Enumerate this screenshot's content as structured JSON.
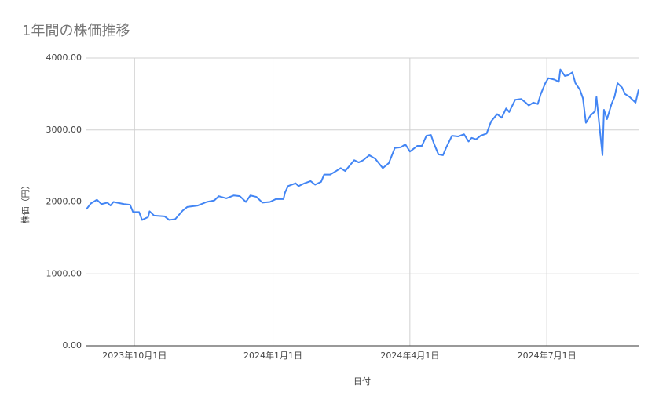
{
  "chart_data": {
    "type": "line",
    "title": "1年間の株価推移",
    "x_label": "日付",
    "y_label": "株価（円）",
    "x": [
      "2023-08-30",
      "2023-09-02",
      "2023-09-06",
      "2023-09-09",
      "2023-09-13",
      "2023-09-15",
      "2023-09-17",
      "2023-09-24",
      "2023-09-28",
      "2023-09-30",
      "2023-10-04",
      "2023-10-06",
      "2023-10-10",
      "2023-10-11",
      "2023-10-14",
      "2023-10-21",
      "2023-10-24",
      "2023-10-28",
      "2023-11-02",
      "2023-11-05",
      "2023-11-12",
      "2023-11-18",
      "2023-11-23",
      "2023-11-26",
      "2023-12-01",
      "2023-12-06",
      "2023-12-10",
      "2023-12-14",
      "2023-12-17",
      "2023-12-21",
      "2023-12-25",
      "2023-12-30",
      "2024-01-03",
      "2024-01-08",
      "2024-01-09",
      "2024-01-11",
      "2024-01-16",
      "2024-01-18",
      "2024-01-22",
      "2024-01-26",
      "2024-01-29",
      "2024-02-02",
      "2024-02-04",
      "2024-02-08",
      "2024-02-12",
      "2024-02-15",
      "2024-02-18",
      "2024-02-24",
      "2024-02-27",
      "2024-03-01",
      "2024-03-05",
      "2024-03-09",
      "2024-03-14",
      "2024-03-18",
      "2024-03-22",
      "2024-03-26",
      "2024-03-29",
      "2024-04-01",
      "2024-04-06",
      "2024-04-09",
      "2024-04-12",
      "2024-04-15",
      "2024-04-17",
      "2024-04-20",
      "2024-04-23",
      "2024-04-25",
      "2024-04-29",
      "2024-05-03",
      "2024-05-07",
      "2024-05-10",
      "2024-05-12",
      "2024-05-15",
      "2024-05-18",
      "2024-05-22",
      "2024-05-25",
      "2024-05-29",
      "2024-06-01",
      "2024-06-04",
      "2024-06-06",
      "2024-06-10",
      "2024-06-14",
      "2024-06-17",
      "2024-06-19",
      "2024-06-22",
      "2024-06-25",
      "2024-06-27",
      "2024-06-30",
      "2024-07-02",
      "2024-07-06",
      "2024-07-09",
      "2024-07-10",
      "2024-07-13",
      "2024-07-15",
      "2024-07-18",
      "2024-07-20",
      "2024-07-23",
      "2024-07-25",
      "2024-07-27",
      "2024-07-30",
      "2024-08-02",
      "2024-08-03",
      "2024-08-05",
      "2024-08-07",
      "2024-08-08",
      "2024-08-10",
      "2024-08-13",
      "2024-08-15",
      "2024-08-17",
      "2024-08-20",
      "2024-08-22",
      "2024-08-25",
      "2024-08-27",
      "2024-08-29",
      "2024-08-31"
    ],
    "series": [
      {
        "name": "株価",
        "color": "#4285f4",
        "values": [
          1900,
          1980,
          2030,
          1970,
          1990,
          1950,
          2000,
          1970,
          1960,
          1860,
          1860,
          1750,
          1790,
          1870,
          1810,
          1800,
          1750,
          1760,
          1880,
          1930,
          1950,
          2000,
          2020,
          2080,
          2050,
          2090,
          2080,
          2000,
          2090,
          2070,
          1990,
          2000,
          2040,
          2040,
          2130,
          2220,
          2260,
          2220,
          2260,
          2290,
          2240,
          2280,
          2380,
          2380,
          2430,
          2470,
          2430,
          2580,
          2550,
          2580,
          2650,
          2600,
          2470,
          2540,
          2750,
          2760,
          2800,
          2700,
          2780,
          2780,
          2920,
          2930,
          2810,
          2660,
          2650,
          2750,
          2920,
          2910,
          2940,
          2840,
          2890,
          2870,
          2920,
          2950,
          3120,
          3220,
          3170,
          3300,
          3250,
          3420,
          3430,
          3380,
          3340,
          3380,
          3360,
          3500,
          3650,
          3720,
          3700,
          3670,
          3840,
          3750,
          3760,
          3800,
          3650,
          3560,
          3440,
          3100,
          3200,
          3260,
          3460,
          3050,
          2650,
          3280,
          3150,
          3360,
          3460,
          3650,
          3590,
          3500,
          3460,
          3420,
          3380,
          3560
        ]
      }
    ],
    "xlim": [
      "2023-08-30",
      "2024-08-31"
    ],
    "xticks": [
      {
        "value": "2023-10-01",
        "label": "2023年10月1日"
      },
      {
        "value": "2024-01-01",
        "label": "2024年1月1日"
      },
      {
        "value": "2024-04-01",
        "label": "2024年4月1日"
      },
      {
        "value": "2024-07-01",
        "label": "2024年7月1日"
      }
    ],
    "ylim": [
      0,
      4000
    ],
    "yticks": [
      {
        "value": 0,
        "label": "0.00"
      },
      {
        "value": 1000,
        "label": "1000.00"
      },
      {
        "value": 2000,
        "label": "2000.00"
      },
      {
        "value": 3000,
        "label": "3000.00"
      },
      {
        "value": 4000,
        "label": "4000.00"
      }
    ],
    "grid": true
  }
}
